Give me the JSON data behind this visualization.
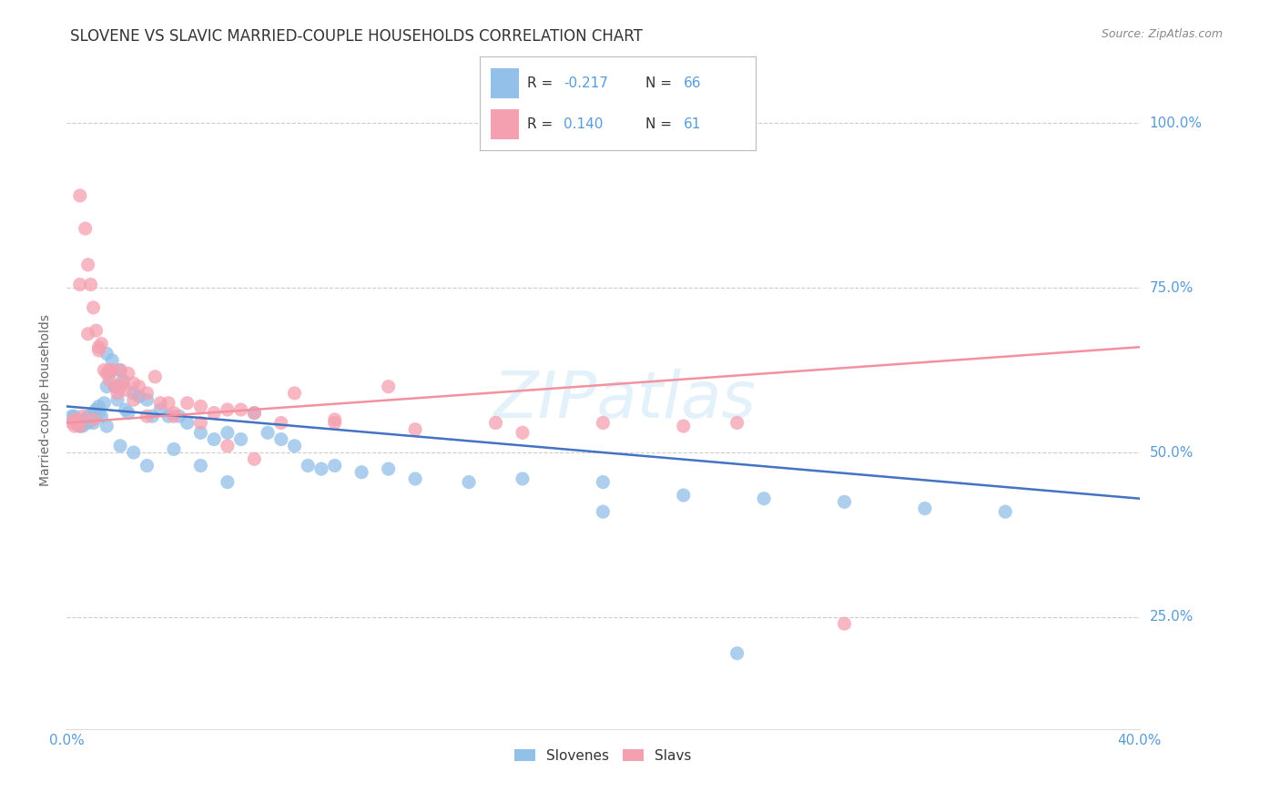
{
  "title": "SLOVENE VS SLAVIC MARRIED-COUPLE HOUSEHOLDS CORRELATION CHART",
  "source": "Source: ZipAtlas.com",
  "ylabel": "Married-couple Households",
  "ytick_labels": [
    "25.0%",
    "50.0%",
    "75.0%",
    "100.0%"
  ],
  "ytick_values": [
    0.25,
    0.5,
    0.75,
    1.0
  ],
  "xlim": [
    0.0,
    0.4
  ],
  "ylim": [
    0.08,
    1.08
  ],
  "watermark": "ZIPatlas",
  "slovenes_color": "#92c0e8",
  "slavs_color": "#f5a0b0",
  "slovenes_x": [
    0.002,
    0.003,
    0.004,
    0.005,
    0.006,
    0.006,
    0.007,
    0.008,
    0.008,
    0.009,
    0.01,
    0.01,
    0.011,
    0.012,
    0.012,
    0.013,
    0.014,
    0.015,
    0.015,
    0.016,
    0.017,
    0.018,
    0.019,
    0.02,
    0.021,
    0.022,
    0.023,
    0.025,
    0.027,
    0.03,
    0.032,
    0.035,
    0.038,
    0.042,
    0.045,
    0.05,
    0.055,
    0.06,
    0.065,
    0.07,
    0.075,
    0.08,
    0.085,
    0.09,
    0.095,
    0.1,
    0.11,
    0.12,
    0.13,
    0.15,
    0.17,
    0.2,
    0.23,
    0.26,
    0.29,
    0.32,
    0.35,
    0.015,
    0.02,
    0.025,
    0.03,
    0.04,
    0.05,
    0.06,
    0.2,
    0.25
  ],
  "slovenes_y": [
    0.555,
    0.555,
    0.545,
    0.54,
    0.545,
    0.54,
    0.55,
    0.555,
    0.545,
    0.55,
    0.56,
    0.545,
    0.565,
    0.57,
    0.56,
    0.555,
    0.575,
    0.65,
    0.6,
    0.62,
    0.64,
    0.6,
    0.58,
    0.625,
    0.61,
    0.565,
    0.56,
    0.59,
    0.585,
    0.58,
    0.555,
    0.565,
    0.555,
    0.555,
    0.545,
    0.53,
    0.52,
    0.53,
    0.52,
    0.56,
    0.53,
    0.52,
    0.51,
    0.48,
    0.475,
    0.48,
    0.47,
    0.475,
    0.46,
    0.455,
    0.46,
    0.455,
    0.435,
    0.43,
    0.425,
    0.415,
    0.41,
    0.54,
    0.51,
    0.5,
    0.48,
    0.505,
    0.48,
    0.455,
    0.41,
    0.195
  ],
  "slavs_x": [
    0.002,
    0.003,
    0.003,
    0.004,
    0.005,
    0.005,
    0.006,
    0.007,
    0.008,
    0.009,
    0.01,
    0.01,
    0.011,
    0.012,
    0.013,
    0.014,
    0.015,
    0.016,
    0.017,
    0.018,
    0.019,
    0.02,
    0.021,
    0.022,
    0.023,
    0.025,
    0.027,
    0.03,
    0.033,
    0.035,
    0.038,
    0.04,
    0.045,
    0.05,
    0.055,
    0.06,
    0.065,
    0.07,
    0.085,
    0.1,
    0.12,
    0.16,
    0.2,
    0.25,
    0.005,
    0.008,
    0.012,
    0.016,
    0.02,
    0.025,
    0.03,
    0.04,
    0.05,
    0.06,
    0.07,
    0.08,
    0.1,
    0.13,
    0.17,
    0.23,
    0.29
  ],
  "slavs_y": [
    0.545,
    0.55,
    0.54,
    0.545,
    0.89,
    0.54,
    0.555,
    0.84,
    0.785,
    0.755,
    0.72,
    0.55,
    0.685,
    0.66,
    0.665,
    0.625,
    0.62,
    0.61,
    0.625,
    0.6,
    0.59,
    0.625,
    0.605,
    0.595,
    0.62,
    0.605,
    0.6,
    0.59,
    0.615,
    0.575,
    0.575,
    0.56,
    0.575,
    0.57,
    0.56,
    0.565,
    0.565,
    0.56,
    0.59,
    0.55,
    0.6,
    0.545,
    0.545,
    0.545,
    0.755,
    0.68,
    0.655,
    0.625,
    0.6,
    0.58,
    0.555,
    0.555,
    0.545,
    0.51,
    0.49,
    0.545,
    0.545,
    0.535,
    0.53,
    0.54,
    0.24
  ],
  "blue_line_x": [
    0.0,
    0.4
  ],
  "blue_line_y": [
    0.57,
    0.43
  ],
  "pink_line_x": [
    0.0,
    0.4
  ],
  "pink_line_y": [
    0.545,
    0.66
  ],
  "slovenes_label": "Slovenes",
  "slavs_label": "Slavs",
  "grid_color": "#cccccc",
  "axis_label_color": "#5b9bd5",
  "title_color": "#333333",
  "title_fontsize": 12,
  "source_fontsize": 9,
  "ylabel_fontsize": 10,
  "legend_blue_color": "#92c0e8",
  "legend_pink_color": "#f5a0b0",
  "legend_r1": "-0.217",
  "legend_n1": "66",
  "legend_r2": "0.140",
  "legend_n2": "61"
}
